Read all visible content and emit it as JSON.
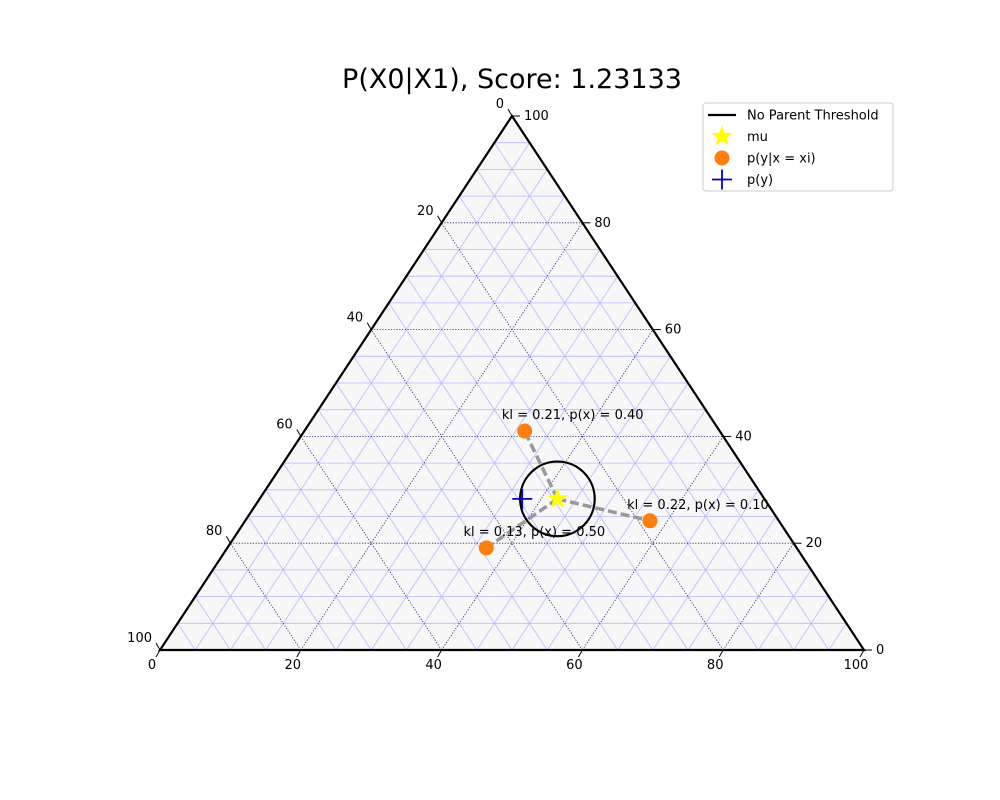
{
  "chart_data": {
    "type": "scatter",
    "subtype": "ternary",
    "title": "P(X0|X1), Score: 1.23133",
    "scale": 100,
    "tick_values": [
      0,
      20,
      40,
      60,
      80,
      100
    ],
    "bottom_ticks": [
      "0",
      "20",
      "40",
      "60",
      "80",
      "100"
    ],
    "right_ticks": [
      "0",
      "20",
      "40",
      "60",
      "80",
      "100"
    ],
    "left_ticks": [
      "0",
      "20",
      "40",
      "60",
      "80",
      "100"
    ],
    "grid_fine": true,
    "grid_major_dotted": true,
    "colors": {
      "background": "#f7f7f8",
      "fine_grid": "#b8b8ff",
      "major_grid": "#1c1c6e",
      "border": "#000000",
      "point": "#ff7f0e",
      "mu": "#ffff00",
      "py": "#0000cc",
      "connector": "#999999",
      "threshold": "#000000"
    },
    "mu": {
      "bottom": 42.3,
      "right": 28.3
    },
    "py": {
      "bottom": 37.3,
      "right": 28.3
    },
    "threshold_circle": {
      "radius": 5.3
    },
    "points": [
      {
        "bottom": 31.3,
        "right": 41.0,
        "label": "kl = 0.21, p(x) = 0.40"
      },
      {
        "bottom": 57.5,
        "right": 24.2,
        "label": "kl = 0.22, p(x) = 0.10"
      },
      {
        "bottom": 36.8,
        "right": 19.1,
        "label": "kl = 0.13, p(x) = 0.50"
      }
    ],
    "legend": {
      "position": "top-right",
      "entries": [
        {
          "label": "No Parent Threshold",
          "marker": "line"
        },
        {
          "label": "mu",
          "marker": "star"
        },
        {
          "label": "p(y|x = xi)",
          "marker": "circle"
        },
        {
          "label": "p(y)",
          "marker": "plus"
        }
      ]
    }
  }
}
